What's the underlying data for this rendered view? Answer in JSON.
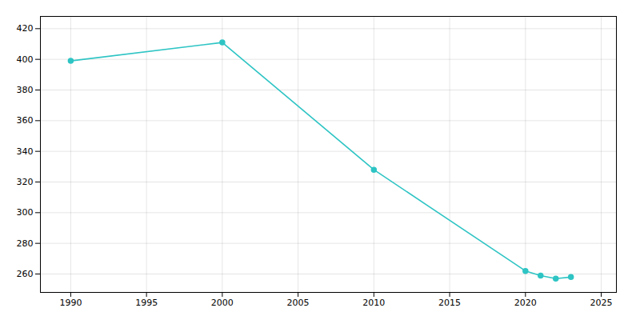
{
  "chart_data": {
    "type": "line",
    "x": [
      1990,
      2000,
      2010,
      2020,
      2021,
      2022,
      2023
    ],
    "values": [
      399,
      411,
      328,
      262,
      259,
      257,
      258
    ],
    "color": "#2EC4C4",
    "marker": "circle",
    "xlim": [
      1988,
      2026
    ],
    "ylim": [
      248,
      428
    ],
    "xticks": [
      1990,
      1995,
      2000,
      2005,
      2010,
      2015,
      2020,
      2025
    ],
    "yticks": [
      260,
      280,
      300,
      320,
      340,
      360,
      380,
      400,
      420
    ],
    "grid": true
  }
}
